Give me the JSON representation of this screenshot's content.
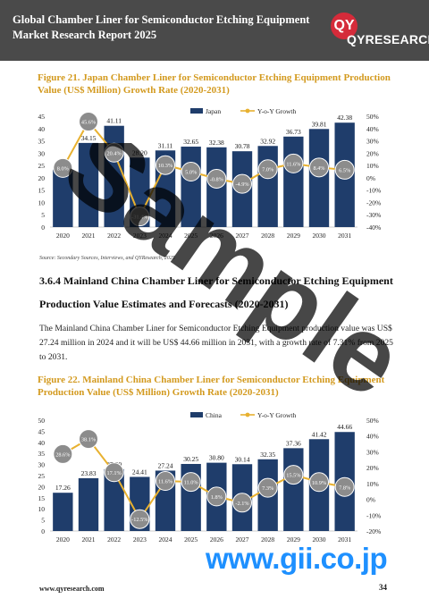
{
  "header": {
    "title": "Global Chamber Liner for Semiconductor Etching Equipment Market Research Report 2025",
    "logo_mark": "QY",
    "logo_text": "QYRESEARCH"
  },
  "figure21": {
    "caption": "Figure 21.   Japan Chamber Liner for Semiconductor Etching Equipment Production Value (US$ Million) Growth Rate (2020-2031)"
  },
  "source_note": "Source: Secondary Sources, Interviews, and QYResearch, 2025",
  "section": {
    "heading_line1": "3.6.4  Mainland China Chamber Liner for Semiconductor Etching Equipment",
    "heading_line2": "Production Value Estimates and Forecasts (2020-2031)",
    "body": "The Mainland China Chamber Liner for Semiconductor Etching Equipment production value was US$ 27.24 million in 2024 and it will be US$ 44.66 million in 2031, with a growth rate of 7.31% from 2025 to 2031."
  },
  "figure22": {
    "caption": "Figure 22.   Mainland China Chamber Liner for Semiconductor Etching Equipment Production Value (US$ Million) Growth Rate (2020-2031)"
  },
  "footer": {
    "url": "www.qyresearch.com",
    "page": "34"
  },
  "watermark": {
    "sample": "Sample",
    "gii": "www.gii.co.jp"
  },
  "colors": {
    "bar": "#1f3d6b",
    "line": "#e8b130",
    "marker": "#8c8c8c",
    "caption": "#d39a1f",
    "header": "#4a4a4a"
  },
  "chart_data": [
    {
      "type": "bar",
      "categories": [
        "2020",
        "2021",
        "2022",
        "2023",
        "2024",
        "2025",
        "2026",
        "2027",
        "2028",
        "2029",
        "2030",
        "2031"
      ],
      "series": [
        {
          "name": "Japan",
          "values": [
            23.35,
            34.15,
            41.11,
            28.2,
            31.11,
            32.65,
            32.38,
            30.78,
            32.92,
            36.73,
            39.81,
            42.38
          ],
          "labels": [
            "23.35",
            "34.15",
            "41.11",
            "28.20",
            "31.11",
            "32.65",
            "32.38",
            "30.78",
            "32.92",
            "36.73",
            "39.81",
            "42.38"
          ]
        },
        {
          "name": "Y-o-Y Growth",
          "type": "line",
          "axis": "right",
          "values": [
            8.0,
            45.6,
            20.4,
            -31.4,
            10.3,
            5.0,
            -0.8,
            -4.9,
            7.0,
            11.6,
            8.4,
            6.5
          ],
          "labels": [
            "8.0%",
            "45.6%",
            "20.4%",
            "-31.4%",
            "10.3%",
            "5.0%",
            "-0.8%",
            "-4.9%",
            "7.0%",
            "11.6%",
            "8.4%",
            "6.5%"
          ]
        }
      ],
      "ylim": [
        0,
        45
      ],
      "yticks": [
        "0",
        "5",
        "10",
        "15",
        "20",
        "25",
        "30",
        "35",
        "40",
        "45"
      ],
      "y2lim": [
        -40,
        50
      ],
      "y2ticks": [
        "-40%",
        "-30%",
        "-20%",
        "-10%",
        "0%",
        "10%",
        "20%",
        "30%",
        "40%",
        "50%"
      ],
      "legend": "top-center"
    },
    {
      "type": "bar",
      "categories": [
        "2020",
        "2021",
        "2022",
        "2023",
        "2024",
        "2025",
        "2026",
        "2027",
        "2028",
        "2029",
        "2030",
        "2031"
      ],
      "series": [
        {
          "name": "China",
          "values": [
            17.26,
            23.83,
            27.9,
            24.41,
            27.24,
            30.25,
            30.8,
            30.14,
            32.35,
            37.36,
            41.42,
            44.66
          ],
          "labels": [
            "17.26",
            "23.83",
            "27.90",
            "24.41",
            "27.24",
            "30.25",
            "30.80",
            "30.14",
            "32.35",
            "37.36",
            "41.42",
            "44.66"
          ]
        },
        {
          "name": "Y-o-Y Growth",
          "type": "line",
          "axis": "right",
          "values": [
            28.6,
            38.1,
            17.1,
            -12.5,
            11.6,
            11.0,
            1.8,
            -2.1,
            7.3,
            15.5,
            10.9,
            7.8
          ],
          "labels": [
            "28.6%",
            "38.1%",
            "17.1%",
            "-12.5%",
            "11.6%",
            "11.0%",
            "1.8%",
            "-2.1%",
            "7.3%",
            "15.5%",
            "10.9%",
            "7.8%"
          ]
        }
      ],
      "ylim": [
        0,
        50
      ],
      "yticks": [
        "0",
        "5",
        "10",
        "15",
        "20",
        "25",
        "30",
        "35",
        "40",
        "45",
        "50"
      ],
      "y2lim": [
        -20,
        50
      ],
      "y2ticks": [
        "-20%",
        "-10%",
        "0%",
        "10%",
        "20%",
        "30%",
        "40%",
        "50%"
      ],
      "legend": "top-center"
    }
  ]
}
